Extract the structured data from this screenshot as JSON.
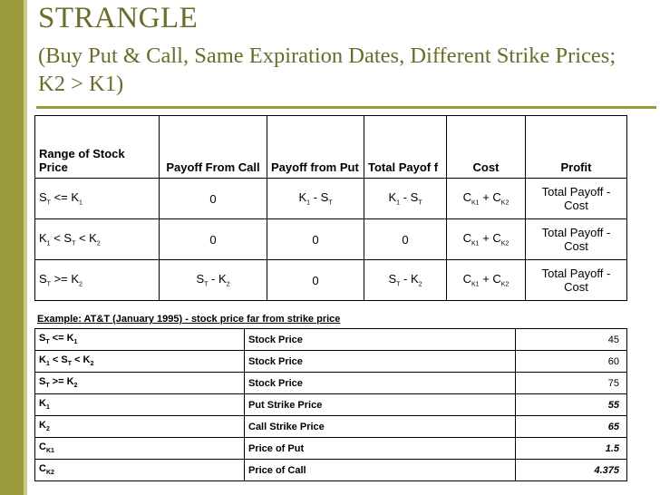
{
  "slide": {
    "title": "STRANGLE",
    "subtitle": "(Buy Put & Call, Same Expiration Dates, Different Strike Prices; K2 > K1)"
  },
  "payoff_table": {
    "headers": [
      "Range of Stock Price",
      "Payoff From Call",
      "Payoff from Put",
      "Total Payof f",
      "Cost",
      "Profit"
    ],
    "rows": [
      {
        "range": [
          "S",
          "T",
          " <= K",
          "1",
          ""
        ],
        "call": "0",
        "put": [
          "K",
          "1",
          " - S",
          "T"
        ],
        "total": [
          "K",
          "1",
          " - S",
          "T"
        ],
        "cost": [
          "C",
          "K1",
          " + C",
          "K2"
        ],
        "profit": "Total Payoff - Cost"
      },
      {
        "range": [
          "K",
          "1",
          " < S",
          "T",
          " < K",
          "2"
        ],
        "call": "0",
        "put": "0",
        "total": "0",
        "cost": [
          "C",
          "K1",
          " + C",
          "K2"
        ],
        "profit": "Total Payoff - Cost"
      },
      {
        "range": [
          "S",
          "T",
          " >= K",
          "2"
        ],
        "call": [
          "S",
          "T",
          " - K",
          "2"
        ],
        "put": "0",
        "total": [
          "S",
          "T",
          " - K",
          "2"
        ],
        "cost": [
          "C",
          "K1",
          " + C",
          "K2"
        ],
        "profit": "Total Payoff - Cost"
      }
    ]
  },
  "example": {
    "caption": "Example: AT&T (January 1995) - stock price far from strike price",
    "rows": [
      {
        "label": [
          "S",
          "T",
          " <= K",
          "1"
        ],
        "name": "Stock Price",
        "value": "45"
      },
      {
        "label": [
          "K",
          "1",
          " < S",
          "T",
          " < K",
          "2"
        ],
        "name": "Stock Price",
        "value": "60"
      },
      {
        "label": [
          "S",
          "T",
          " >= K",
          "2"
        ],
        "name": "Stock Price",
        "value": "75"
      },
      {
        "label": [
          "K",
          "1"
        ],
        "name": "Put Strike Price",
        "value": "55"
      },
      {
        "label": [
          "K",
          "2"
        ],
        "name": "Call Strike Price",
        "value": "65"
      },
      {
        "label": [
          "C",
          "K1"
        ],
        "name": "Price of Put",
        "value": "1.5"
      },
      {
        "label": [
          "C",
          "K2"
        ],
        "name": "Price of Call",
        "value": "4.375"
      }
    ]
  },
  "colors": {
    "accent": "#9a9a3a",
    "title": "#6b6b2a"
  }
}
